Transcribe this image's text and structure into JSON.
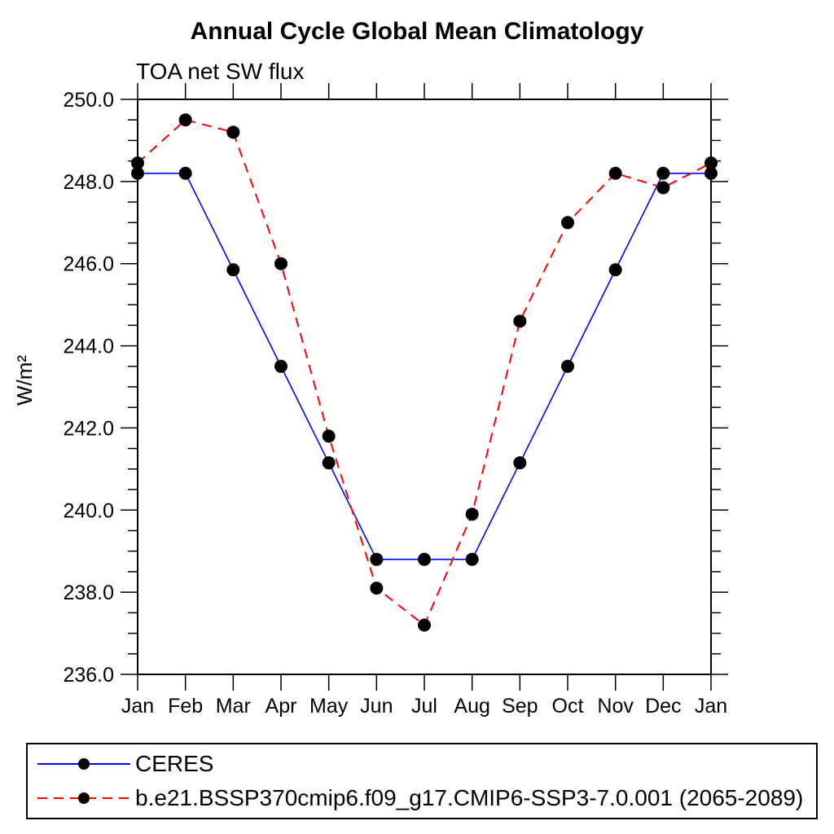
{
  "chart_data": {
    "type": "line",
    "title": "Annual Cycle Global Mean Climatology",
    "subtitle": "TOA net SW flux",
    "ylabel": "W/m²",
    "x_categories": [
      "Jan",
      "Feb",
      "Mar",
      "Apr",
      "May",
      "Jun",
      "Jul",
      "Aug",
      "Sep",
      "Oct",
      "Nov",
      "Dec",
      "Jan"
    ],
    "ylim": [
      236.0,
      250.0
    ],
    "ytick_labels": [
      "236.0",
      "238.0",
      "240.0",
      "242.0",
      "244.0",
      "246.0",
      "248.0",
      "250.0"
    ],
    "ytick_major_step": 2.0,
    "ytick_minor_step": 0.5,
    "grid": false,
    "legend_position": "bottom-box",
    "axis_color": "#000000",
    "marker_color": "#000000",
    "series": [
      {
        "name": "CERES",
        "color": "#0000ff",
        "line_style": "solid",
        "marker": "filled-circle",
        "values": [
          248.2,
          248.2,
          245.85,
          243.5,
          241.15,
          238.8,
          238.8,
          238.8,
          241.15,
          243.5,
          245.85,
          248.2,
          248.2
        ]
      },
      {
        "name": "b.e21.BSSP370cmip6.f09_g17.CMIP6-SSP3-7.0.001 (2065-2089)",
        "color": "#ff0000",
        "line_style": "dashed",
        "marker": "filled-circle",
        "values": [
          248.45,
          249.5,
          249.2,
          246.0,
          241.8,
          238.1,
          237.2,
          239.9,
          244.6,
          247.0,
          248.2,
          247.85,
          248.45
        ]
      }
    ]
  }
}
